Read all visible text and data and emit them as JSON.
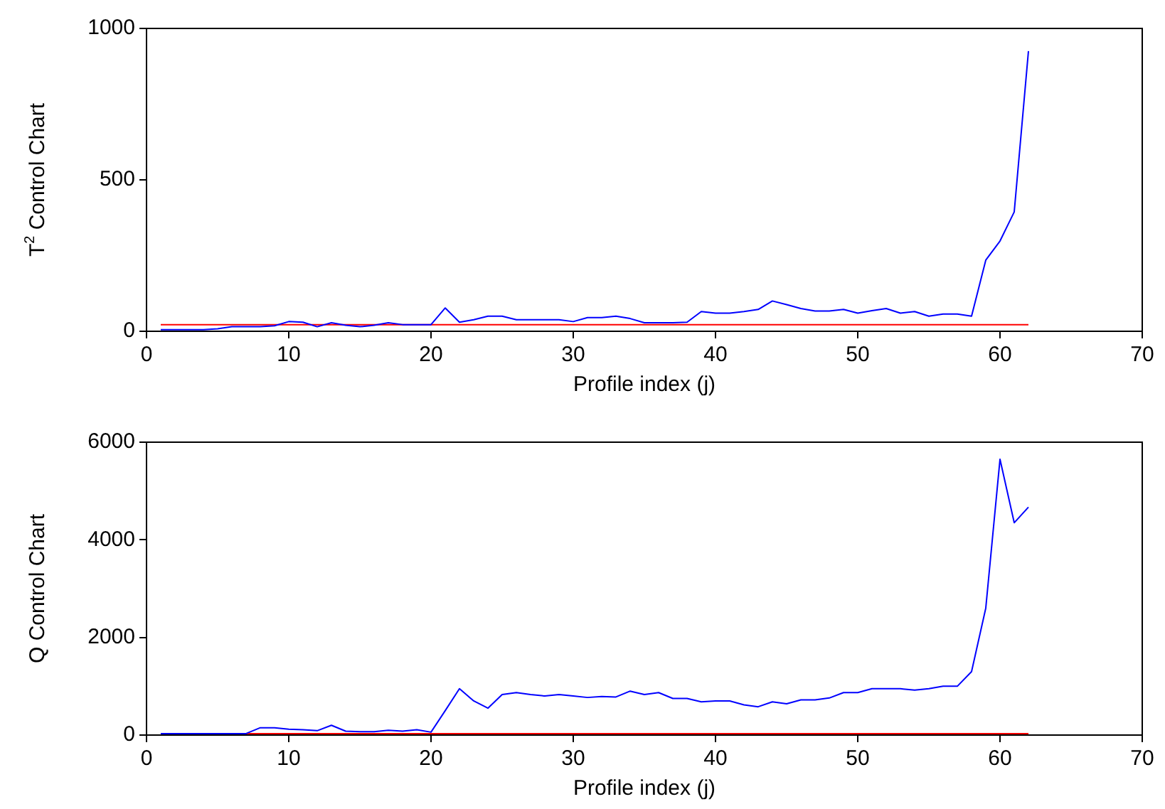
{
  "chart_data": [
    {
      "type": "line",
      "ylabel": "T$^{2}$ Control Chart",
      "xlabel": "Profile index (j)",
      "xlim": [
        0,
        70
      ],
      "xticks": [
        0,
        10,
        20,
        30,
        40,
        50,
        60,
        70
      ],
      "ylim": [
        0,
        1000
      ],
      "yticks": [
        0,
        500,
        1000
      ],
      "grid": false,
      "legend": false,
      "marker": "none",
      "line_style": "solid",
      "series": [
        {
          "color": "#0000ff",
          "x": [
            1,
            2,
            3,
            4,
            5,
            6,
            7,
            8,
            9,
            10,
            11,
            12,
            13,
            14,
            15,
            16,
            17,
            18,
            19,
            20,
            21,
            22,
            23,
            24,
            25,
            26,
            27,
            28,
            29,
            30,
            31,
            32,
            33,
            34,
            35,
            36,
            37,
            38,
            39,
            40,
            41,
            42,
            43,
            44,
            45,
            46,
            47,
            48,
            49,
            50,
            51,
            52,
            53,
            54,
            55,
            56,
            57,
            58,
            59,
            60,
            61,
            62
          ],
          "values": [
            5,
            5,
            5,
            5,
            8,
            15,
            15,
            15,
            18,
            32,
            30,
            15,
            28,
            20,
            15,
            20,
            28,
            22,
            22,
            22,
            77,
            30,
            38,
            50,
            50,
            38,
            38,
            38,
            38,
            32,
            45,
            45,
            50,
            42,
            28,
            28,
            28,
            30,
            65,
            60,
            60,
            65,
            72,
            100,
            88,
            75,
            67,
            67,
            72,
            60,
            68,
            75,
            60,
            65,
            50,
            57,
            57,
            50,
            235,
            298,
            394,
            925
          ]
        },
        {
          "color": "#ff0000",
          "x": [
            1,
            62
          ],
          "values": [
            22,
            22
          ]
        }
      ]
    },
    {
      "type": "line",
      "ylabel": "Q Control Chart",
      "xlabel": "Profile index (j)",
      "xlim": [
        0,
        70
      ],
      "xticks": [
        0,
        10,
        20,
        30,
        40,
        50,
        60,
        70
      ],
      "ylim": [
        0,
        6000
      ],
      "yticks": [
        0,
        2000,
        4000,
        6000
      ],
      "grid": false,
      "legend": false,
      "marker": "none",
      "line_style": "solid",
      "series": [
        {
          "color": "#0000ff",
          "x": [
            1,
            2,
            3,
            4,
            5,
            6,
            7,
            8,
            9,
            10,
            11,
            12,
            13,
            14,
            15,
            16,
            17,
            18,
            19,
            20,
            21,
            22,
            23,
            24,
            25,
            26,
            27,
            28,
            29,
            30,
            31,
            32,
            33,
            34,
            35,
            36,
            37,
            38,
            39,
            40,
            41,
            42,
            43,
            44,
            45,
            46,
            47,
            48,
            49,
            50,
            51,
            52,
            53,
            54,
            55,
            56,
            57,
            58,
            59,
            60,
            61,
            62
          ],
          "values": [
            30,
            30,
            30,
            30,
            30,
            30,
            30,
            150,
            150,
            120,
            110,
            90,
            200,
            80,
            70,
            70,
            100,
            80,
            110,
            60,
            500,
            950,
            700,
            550,
            830,
            870,
            830,
            800,
            830,
            800,
            770,
            790,
            780,
            900,
            830,
            870,
            750,
            750,
            680,
            700,
            700,
            620,
            580,
            680,
            640,
            720,
            720,
            760,
            870,
            870,
            950,
            950,
            950,
            920,
            950,
            1000,
            1000,
            1300,
            2600,
            5650,
            4350,
            4670
          ]
        },
        {
          "color": "#ff0000",
          "x": [
            1,
            62
          ],
          "values": [
            30,
            30
          ]
        }
      ]
    }
  ]
}
